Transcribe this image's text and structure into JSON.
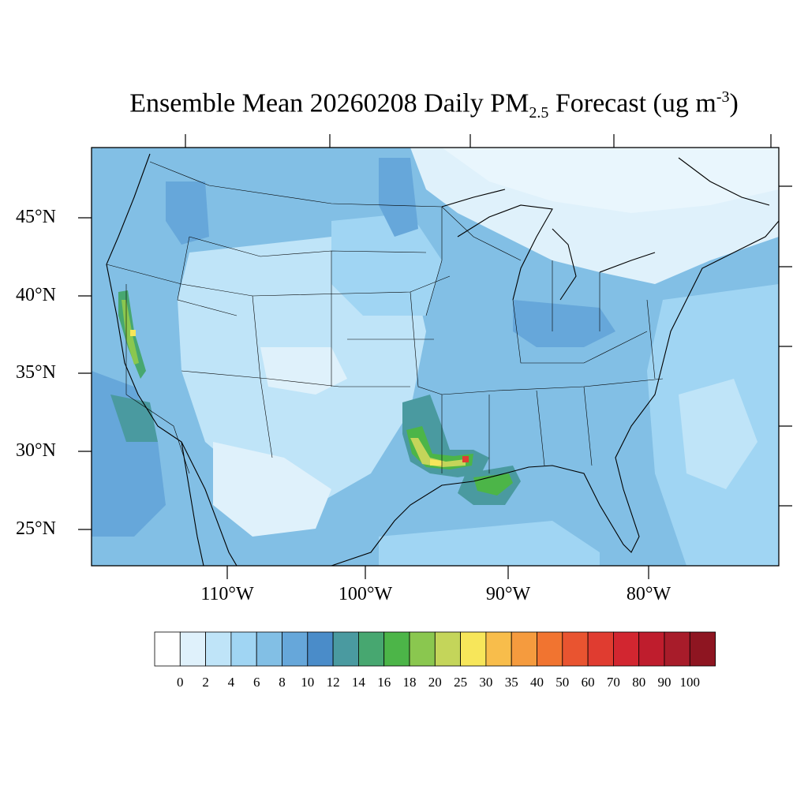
{
  "title": {
    "prefix": "Ensemble Mean 20260208 Daily PM",
    "subscript": "2.5",
    "middle": " Forecast (ug m",
    "superscript": "-3",
    "suffix": ")"
  },
  "map": {
    "lat_labels": [
      "45°N",
      "40°N",
      "35°N",
      "30°N",
      "25°N"
    ],
    "lon_labels": [
      "110°W",
      "100°W",
      "90°W",
      "80°W"
    ]
  },
  "colorbar": {
    "labels": [
      "0",
      "2",
      "4",
      "6",
      "8",
      "10",
      "12",
      "14",
      "16",
      "18",
      "20",
      "25",
      "30",
      "35",
      "40",
      "50",
      "60",
      "70",
      "80",
      "90",
      "100"
    ],
    "colors": [
      "#ffffff",
      "#dff1fb",
      "#bfe4f8",
      "#a0d5f3",
      "#82bfe5",
      "#66a7da",
      "#4a8cc9",
      "#4a9aa0",
      "#47a770",
      "#4cb548",
      "#8ac74f",
      "#c4d55a",
      "#f7e65a",
      "#f8bd4b",
      "#f59b3e",
      "#f17430",
      "#e95430",
      "#e03c30",
      "#d22630",
      "#bf1d2d",
      "#a81c2a",
      "#8e1521"
    ]
  }
}
